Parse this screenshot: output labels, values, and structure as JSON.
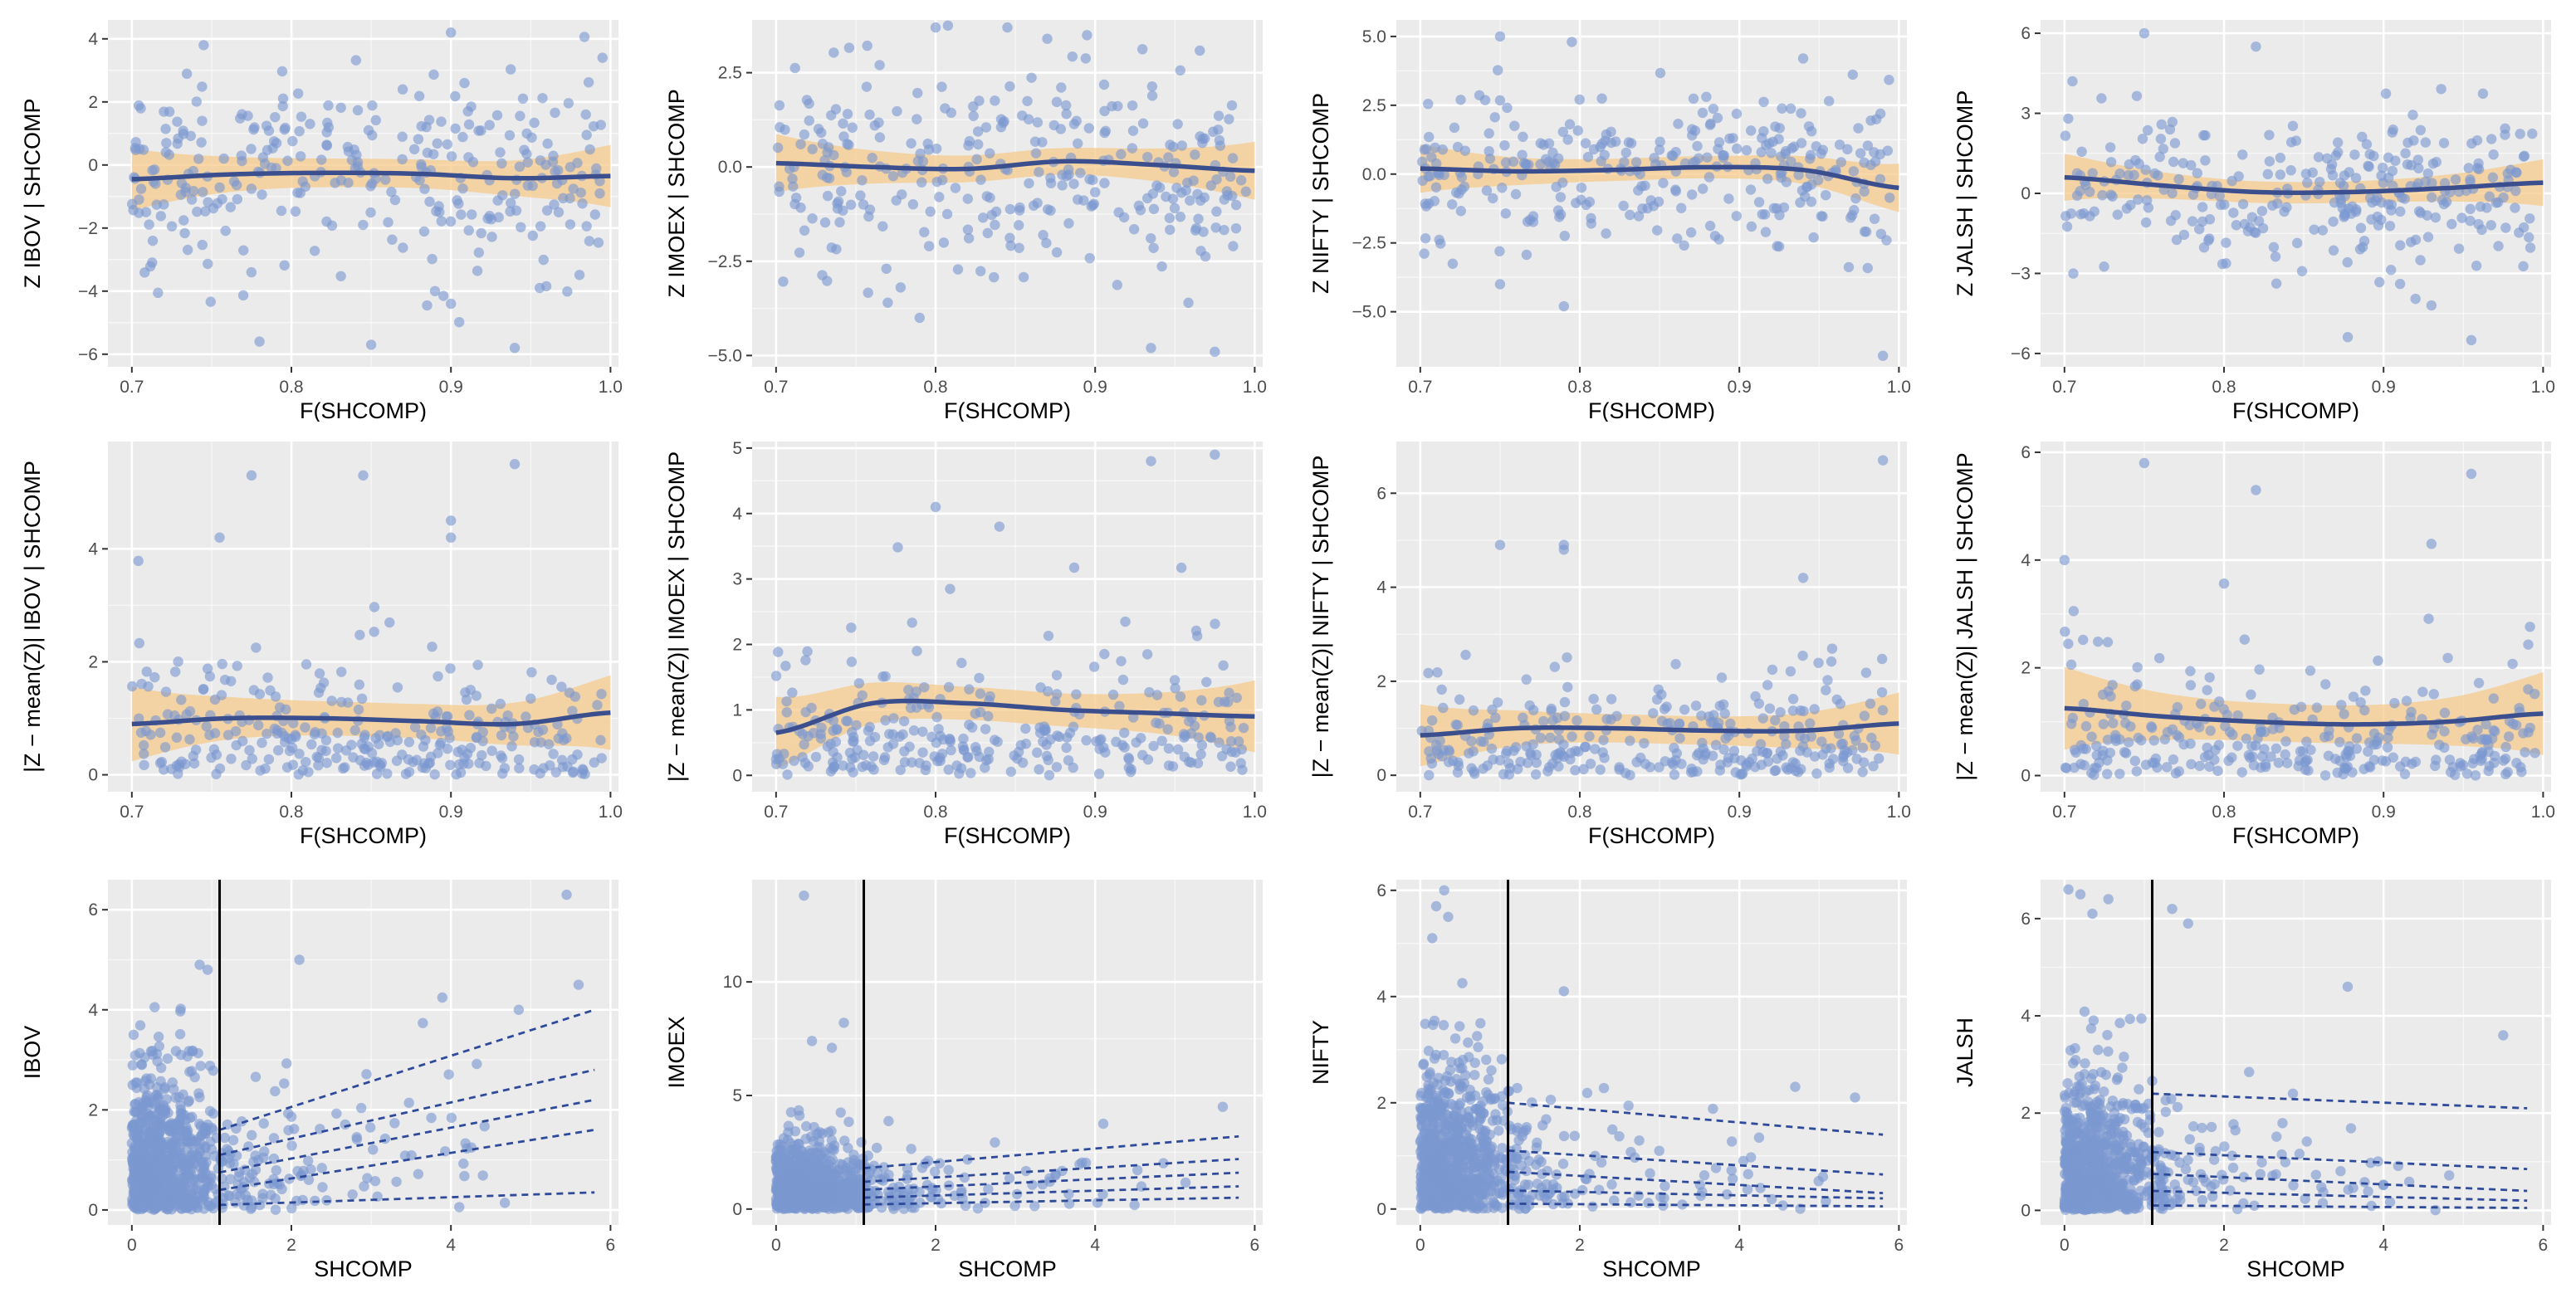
{
  "colors": {
    "panel_bg": "#ebebeb",
    "grid_major": "#ffffff",
    "point": "#7b97d0",
    "line": "#3b4f8e",
    "ribbon": "#f6c98b",
    "vline": "#000000",
    "dashed": "#2e4a9a",
    "text_tick": "#4d4d4d",
    "text_label": "#000000"
  },
  "chart_data": [
    {
      "id": "z-ibov",
      "type": "scatter",
      "xlabel": "F(SHCOMP)",
      "ylabel": "Z   IBOV | SHCOMP",
      "xlim": [
        0.685,
        1.005
      ],
      "ylim": [
        -6.4,
        4.6
      ],
      "xticks": [
        0.7,
        0.8,
        0.9,
        1.0
      ],
      "xtick_labels": [
        "0.7",
        "0.8",
        "0.9",
        "1.0"
      ],
      "yticks": [
        -6,
        -4,
        -2,
        0,
        2,
        4
      ],
      "ytick_labels": [
        "−6",
        "−4",
        "−2",
        "0",
        "2",
        "4"
      ],
      "n_points": 300,
      "smooth_y": [
        -0.45,
        -0.3,
        -0.25,
        -0.28,
        -0.42,
        -0.35
      ],
      "band_halfwidth": 0.45,
      "yscale": 1.6,
      "outliers": [
        [
          0.9,
          4.2
        ],
        [
          0.995,
          3.4
        ],
        [
          0.745,
          3.8
        ],
        [
          0.78,
          -5.6
        ],
        [
          0.85,
          -5.7
        ],
        [
          0.94,
          -5.8
        ],
        [
          0.9,
          -4.4
        ],
        [
          0.89,
          -4.0
        ]
      ]
    },
    {
      "id": "z-imoex",
      "type": "scatter",
      "xlabel": "F(SHCOMP)",
      "ylabel": "Z   IMOEX | SHCOMP",
      "xlim": [
        0.685,
        1.005
      ],
      "ylim": [
        -5.3,
        3.9
      ],
      "xticks": [
        0.7,
        0.8,
        0.9,
        1.0
      ],
      "xtick_labels": [
        "0.7",
        "0.8",
        "0.9",
        "1.0"
      ],
      "yticks": [
        -5.0,
        -2.5,
        0.0,
        2.5
      ],
      "ytick_labels": [
        "−5.0",
        "−2.5",
        "0.0",
        "2.5"
      ],
      "n_points": 300,
      "smooth_y": [
        0.1,
        0.0,
        -0.05,
        0.15,
        0.05,
        -0.1
      ],
      "band_halfwidth": 0.35,
      "yscale": 1.4,
      "outliers": [
        [
          0.8,
          3.7
        ],
        [
          0.845,
          3.7
        ],
        [
          0.935,
          -4.8
        ],
        [
          0.975,
          -4.9
        ],
        [
          0.77,
          -3.6
        ],
        [
          0.79,
          -4.0
        ],
        [
          0.87,
          3.4
        ]
      ]
    },
    {
      "id": "z-nifty",
      "type": "scatter",
      "xlabel": "F(SHCOMP)",
      "ylabel": "Z   NIFTY | SHCOMP",
      "xlim": [
        0.685,
        1.005
      ],
      "ylim": [
        -7.0,
        5.6
      ],
      "xticks": [
        0.7,
        0.8,
        0.9,
        1.0
      ],
      "xtick_labels": [
        "0.7",
        "0.8",
        "0.9",
        "1.0"
      ],
      "yticks": [
        -5.0,
        -2.5,
        0.0,
        2.5,
        5.0
      ],
      "ytick_labels": [
        "−5.0",
        "−2.5",
        "0.0",
        "2.5",
        "5.0"
      ],
      "n_points": 300,
      "smooth_y": [
        0.2,
        0.1,
        0.15,
        0.25,
        0.15,
        -0.5
      ],
      "band_halfwidth": 0.4,
      "yscale": 1.4,
      "outliers": [
        [
          0.75,
          5.0
        ],
        [
          0.795,
          4.8
        ],
        [
          0.99,
          -6.6
        ],
        [
          0.79,
          -4.8
        ],
        [
          0.75,
          -4.0
        ],
        [
          0.94,
          4.2
        ]
      ]
    },
    {
      "id": "z-jalsh",
      "type": "scatter",
      "xlabel": "F(SHCOMP)",
      "ylabel": "Z   JALSH | SHCOMP",
      "xlim": [
        0.685,
        1.005
      ],
      "ylim": [
        -6.5,
        6.5
      ],
      "xticks": [
        0.7,
        0.8,
        0.9,
        1.0
      ],
      "xtick_labels": [
        "0.7",
        "0.8",
        "0.9",
        "1.0"
      ],
      "yticks": [
        -6,
        -3,
        0,
        3,
        6
      ],
      "ytick_labels": [
        "−6",
        "−3",
        "0",
        "3",
        "6"
      ],
      "n_points": 300,
      "smooth_y": [
        0.6,
        0.3,
        0.05,
        0.05,
        0.2,
        0.4
      ],
      "band_halfwidth": 0.4,
      "yscale": 1.5,
      "outliers": [
        [
          0.75,
          6.0
        ],
        [
          0.82,
          5.5
        ],
        [
          0.955,
          -5.5
        ],
        [
          0.93,
          -4.2
        ],
        [
          0.705,
          4.2
        ]
      ]
    },
    {
      "id": "abs-ibov",
      "type": "scatter",
      "xlabel": "F(SHCOMP)",
      "ylabel": "|Z − mean(Z)|   IBOV | SHCOMP",
      "xlim": [
        0.685,
        1.005
      ],
      "ylim": [
        -0.3,
        5.9
      ],
      "xticks": [
        0.7,
        0.8,
        0.9,
        1.0
      ],
      "xtick_labels": [
        "0.7",
        "0.8",
        "0.9",
        "1.0"
      ],
      "yticks": [
        0,
        2,
        4
      ],
      "ytick_labels": [
        "0",
        "2",
        "4"
      ],
      "n_points": 300,
      "smooth_y": [
        0.9,
        1.0,
        1.0,
        0.95,
        0.9,
        1.1
      ],
      "band_halfwidth": 0.3,
      "yscale": 1.0,
      "outliers": [
        [
          0.775,
          5.3
        ],
        [
          0.845,
          5.3
        ],
        [
          0.94,
          5.5
        ],
        [
          0.9,
          4.5
        ],
        [
          0.9,
          4.2
        ],
        [
          0.755,
          4.2
        ]
      ]
    },
    {
      "id": "abs-imoex",
      "type": "scatter",
      "xlabel": "F(SHCOMP)",
      "ylabel": "|Z − mean(Z)|   IMOEX | SHCOMP",
      "xlim": [
        0.685,
        1.005
      ],
      "ylim": [
        -0.25,
        5.1
      ],
      "xticks": [
        0.7,
        0.8,
        0.9,
        1.0
      ],
      "xtick_labels": [
        "0.7",
        "0.8",
        "0.9",
        "1.0"
      ],
      "yticks": [
        0,
        1,
        2,
        3,
        4,
        5
      ],
      "ytick_labels": [
        "0",
        "1",
        "2",
        "3",
        "4",
        "5"
      ],
      "n_points": 300,
      "smooth_y": [
        0.65,
        1.1,
        1.1,
        1.0,
        0.95,
        0.9
      ],
      "band_halfwidth": 0.25,
      "yscale": 0.9,
      "outliers": [
        [
          0.935,
          4.8
        ],
        [
          0.975,
          4.9
        ],
        [
          0.8,
          4.1
        ],
        [
          0.84,
          3.8
        ]
      ]
    },
    {
      "id": "abs-nifty",
      "type": "scatter",
      "xlabel": "F(SHCOMP)",
      "ylabel": "|Z − mean(Z)|   NIFTY | SHCOMP",
      "xlim": [
        0.685,
        1.005
      ],
      "ylim": [
        -0.35,
        7.1
      ],
      "xticks": [
        0.7,
        0.8,
        0.9,
        1.0
      ],
      "xtick_labels": [
        "0.7",
        "0.8",
        "0.9",
        "1.0"
      ],
      "yticks": [
        0,
        2,
        4,
        6
      ],
      "ytick_labels": [
        "0",
        "2",
        "4",
        "6"
      ],
      "n_points": 300,
      "smooth_y": [
        0.85,
        1.0,
        1.0,
        0.95,
        0.95,
        1.1
      ],
      "band_halfwidth": 0.3,
      "yscale": 1.0,
      "outliers": [
        [
          0.99,
          6.7
        ],
        [
          0.75,
          4.9
        ],
        [
          0.79,
          4.9
        ],
        [
          0.79,
          4.8
        ],
        [
          0.94,
          4.2
        ]
      ]
    },
    {
      "id": "abs-jalsh",
      "type": "scatter",
      "xlabel": "F(SHCOMP)",
      "ylabel": "|Z − mean(Z)|   JALSH | SHCOMP",
      "xlim": [
        0.685,
        1.005
      ],
      "ylim": [
        -0.3,
        6.2
      ],
      "xticks": [
        0.7,
        0.8,
        0.9,
        1.0
      ],
      "xtick_labels": [
        "0.7",
        "0.8",
        "0.9",
        "1.0"
      ],
      "yticks": [
        0,
        2,
        4,
        6
      ],
      "ytick_labels": [
        "0",
        "2",
        "4",
        "6"
      ],
      "n_points": 300,
      "smooth_y": [
        1.25,
        1.1,
        1.0,
        0.95,
        1.0,
        1.15
      ],
      "band_halfwidth": 0.35,
      "yscale": 1.0,
      "outliers": [
        [
          0.75,
          5.8
        ],
        [
          0.82,
          5.3
        ],
        [
          0.955,
          5.6
        ],
        [
          0.7,
          4.0
        ],
        [
          0.93,
          4.3
        ]
      ]
    },
    {
      "id": "raw-ibov",
      "type": "scatter",
      "xlabel": "SHCOMP",
      "ylabel": "IBOV",
      "xlim": [
        -0.3,
        6.1
      ],
      "ylim": [
        -0.3,
        6.6
      ],
      "xticks": [
        0,
        2,
        4,
        6
      ],
      "xtick_labels": [
        "0",
        "2",
        "4",
        "6"
      ],
      "yticks": [
        0,
        2,
        4,
        6
      ],
      "ytick_labels": [
        "0",
        "2",
        "4",
        "6"
      ],
      "threshold": 1.1,
      "quantile_lines": [
        [
          [
            1.1,
            0.1
          ],
          [
            5.8,
            0.35
          ]
        ],
        [
          [
            1.1,
            0.4
          ],
          [
            5.8,
            1.6
          ]
        ],
        [
          [
            1.1,
            0.75
          ],
          [
            5.8,
            2.2
          ]
        ],
        [
          [
            1.1,
            1.1
          ],
          [
            5.8,
            2.8
          ]
        ],
        [
          [
            1.1,
            1.6
          ],
          [
            5.8,
            4.0
          ]
        ]
      ],
      "ymax_scatter": 4.9,
      "tail_slope": 0.55,
      "outliers": [
        [
          5.45,
          6.3
        ],
        [
          4.85,
          4.0
        ],
        [
          5.6,
          4.5
        ],
        [
          2.1,
          5.0
        ],
        [
          0.85,
          4.9
        ],
        [
          0.95,
          4.8
        ]
      ]
    },
    {
      "id": "raw-imoex",
      "type": "scatter",
      "xlabel": "SHCOMP",
      "ylabel": "IMOEX",
      "xlim": [
        -0.3,
        6.1
      ],
      "ylim": [
        -0.7,
        14.5
      ],
      "xticks": [
        0,
        2,
        4,
        6
      ],
      "xtick_labels": [
        "0",
        "2",
        "4",
        "6"
      ],
      "yticks": [
        0,
        5,
        10
      ],
      "ytick_labels": [
        "0",
        "5",
        "10"
      ],
      "threshold": 1.1,
      "quantile_lines": [
        [
          [
            1.1,
            0.2
          ],
          [
            5.8,
            0.5
          ]
        ],
        [
          [
            1.1,
            0.5
          ],
          [
            5.8,
            1.0
          ]
        ],
        [
          [
            1.1,
            0.85
          ],
          [
            5.8,
            1.6
          ]
        ],
        [
          [
            1.1,
            1.2
          ],
          [
            5.8,
            2.2
          ]
        ],
        [
          [
            1.1,
            1.8
          ],
          [
            5.8,
            3.2
          ]
        ]
      ],
      "ymax_scatter": 5.5,
      "tail_slope": 0.4,
      "outliers": [
        [
          0.35,
          13.8
        ],
        [
          0.85,
          8.2
        ],
        [
          0.45,
          7.4
        ],
        [
          0.7,
          7.1
        ],
        [
          5.6,
          4.5
        ]
      ]
    },
    {
      "id": "raw-nifty",
      "type": "scatter",
      "xlabel": "SHCOMP",
      "ylabel": "NIFTY",
      "xlim": [
        -0.3,
        6.1
      ],
      "ylim": [
        -0.3,
        6.2
      ],
      "xticks": [
        0,
        2,
        4,
        6
      ],
      "xtick_labels": [
        "0",
        "2",
        "4",
        "6"
      ],
      "yticks": [
        0,
        2,
        4,
        6
      ],
      "ytick_labels": [
        "0",
        "2",
        "4",
        "6"
      ],
      "threshold": 1.1,
      "quantile_lines": [
        [
          [
            1.1,
            0.1
          ],
          [
            5.8,
            0.05
          ]
        ],
        [
          [
            1.1,
            0.35
          ],
          [
            5.8,
            0.2
          ]
        ],
        [
          [
            1.1,
            0.7
          ],
          [
            5.8,
            0.3
          ]
        ],
        [
          [
            1.1,
            1.1
          ],
          [
            5.8,
            0.65
          ]
        ],
        [
          [
            1.1,
            2.0
          ],
          [
            5.8,
            1.4
          ]
        ]
      ],
      "ymax_scatter": 4.9,
      "tail_slope": -0.1,
      "outliers": [
        [
          0.3,
          6.0
        ],
        [
          0.2,
          5.7
        ],
        [
          0.35,
          5.5
        ],
        [
          0.15,
          5.1
        ],
        [
          1.8,
          4.1
        ],
        [
          5.45,
          2.1
        ],
        [
          4.7,
          2.3
        ]
      ]
    },
    {
      "id": "raw-jalsh",
      "type": "scatter",
      "xlabel": "SHCOMP",
      "ylabel": "JALSH",
      "xlim": [
        -0.3,
        6.1
      ],
      "ylim": [
        -0.3,
        6.8
      ],
      "xticks": [
        0,
        2,
        4,
        6
      ],
      "xtick_labels": [
        "0",
        "2",
        "4",
        "6"
      ],
      "yticks": [
        0,
        2,
        4,
        6
      ],
      "ytick_labels": [
        "0",
        "2",
        "4",
        "6"
      ],
      "threshold": 1.1,
      "quantile_lines": [
        [
          [
            1.1,
            0.1
          ],
          [
            5.8,
            0.05
          ]
        ],
        [
          [
            1.1,
            0.4
          ],
          [
            5.8,
            0.2
          ]
        ],
        [
          [
            1.1,
            0.75
          ],
          [
            5.8,
            0.4
          ]
        ],
        [
          [
            1.1,
            1.2
          ],
          [
            5.8,
            0.85
          ]
        ],
        [
          [
            1.1,
            2.4
          ],
          [
            5.8,
            2.1
          ]
        ]
      ],
      "ymax_scatter": 4.3,
      "tail_slope": -0.1,
      "outliers": [
        [
          0.05,
          6.6
        ],
        [
          0.2,
          6.5
        ],
        [
          0.55,
          6.4
        ],
        [
          0.35,
          6.1
        ],
        [
          1.35,
          6.2
        ],
        [
          1.55,
          5.9
        ],
        [
          3.55,
          4.6
        ],
        [
          5.5,
          3.6
        ]
      ]
    }
  ]
}
